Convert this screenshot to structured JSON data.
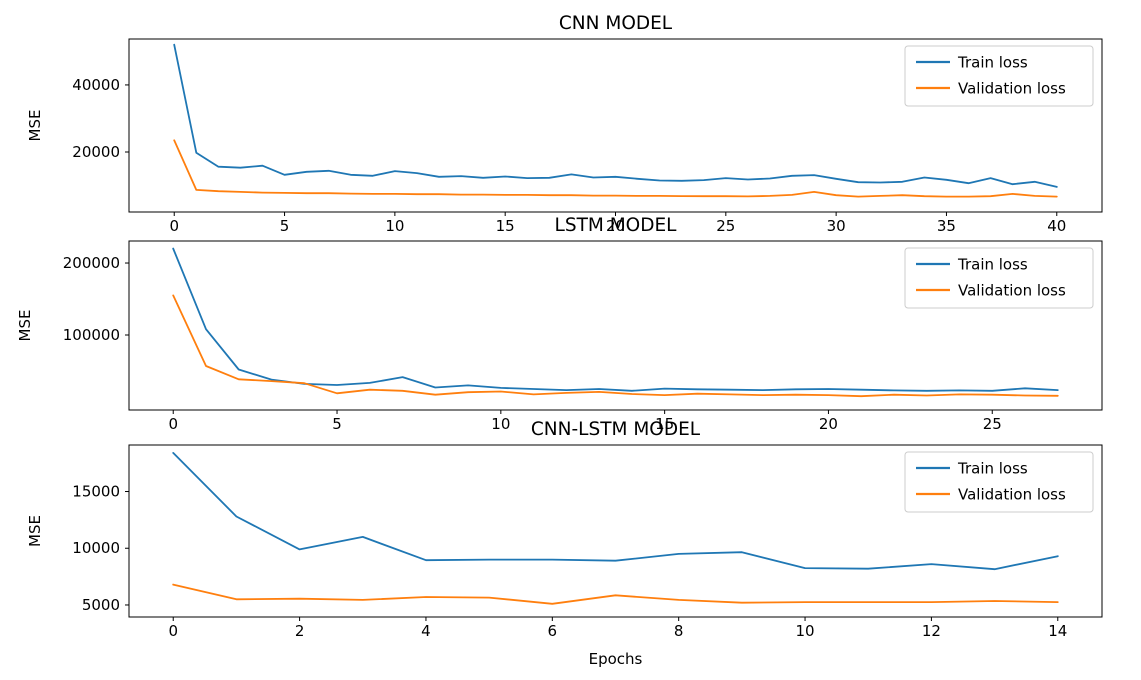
{
  "figure": {
    "background": "#ffffff",
    "train_color": "#1f77b4",
    "validation_color": "#ff7f0e"
  },
  "chart_data": [
    {
      "type": "line",
      "title": "CNN MODEL",
      "ylabel": "MSE",
      "xlabel": "",
      "x_unit": "epoch",
      "xticks": [
        0,
        5,
        10,
        15,
        20,
        25,
        30,
        35,
        40
      ],
      "yticks": [
        20000,
        40000
      ],
      "xlim": [
        -2.05,
        42.05
      ],
      "ylim": [
        2100,
        53700
      ],
      "grid": false,
      "legend_position": "upper right",
      "series": [
        {
          "name": "Train loss",
          "color": "#1f77b4",
          "values": [
            52000,
            19800,
            15600,
            15300,
            15900,
            13200,
            14100,
            14400,
            13200,
            12900,
            14300,
            13700,
            12600,
            12800,
            12300,
            12700,
            12200,
            12300,
            13300,
            12400,
            12600,
            12000,
            11500,
            11400,
            11600,
            12200,
            11800,
            12100,
            12900,
            13100,
            12000,
            11000,
            10900,
            11100,
            12400,
            11700,
            10700,
            12200,
            10400,
            11100,
            9600
          ]
        },
        {
          "name": "Validation loss",
          "color": "#ff7f0e",
          "values": [
            23500,
            8700,
            8300,
            8100,
            7900,
            7800,
            7700,
            7700,
            7600,
            7500,
            7500,
            7400,
            7400,
            7300,
            7300,
            7200,
            7200,
            7100,
            7100,
            7000,
            7000,
            6900,
            6900,
            6850,
            6800,
            6800,
            6750,
            6900,
            7200,
            8100,
            7100,
            6700,
            6900,
            7100,
            6800,
            6700,
            6700,
            6800,
            7500,
            6900,
            6700
          ]
        }
      ]
    },
    {
      "type": "line",
      "title": "LSTM MODEL",
      "ylabel": "MSE",
      "xlabel": "",
      "x_unit": "epoch",
      "xticks": [
        0,
        5,
        10,
        15,
        20,
        25
      ],
      "yticks": [
        100000,
        200000
      ],
      "xlim": [
        -1.35,
        28.35
      ],
      "ylim": [
        -4200,
        230600
      ],
      "grid": false,
      "legend_position": "upper right",
      "series": [
        {
          "name": "Train loss",
          "color": "#1f77b4",
          "values": [
            220000,
            108000,
            52000,
            38000,
            32000,
            30500,
            33500,
            41500,
            27000,
            30000,
            26500,
            25000,
            23500,
            25000,
            22500,
            25500,
            24500,
            24000,
            23500,
            24500,
            25000,
            24000,
            23000,
            22500,
            23000,
            22500,
            26000,
            23500
          ]
        },
        {
          "name": "Validation loss",
          "color": "#ff7f0e",
          "values": [
            155000,
            57000,
            38500,
            36000,
            33000,
            19000,
            24000,
            22500,
            17000,
            20500,
            21500,
            17500,
            19500,
            21000,
            18000,
            16500,
            18500,
            17500,
            16500,
            17000,
            16500,
            15000,
            17000,
            16000,
            17500,
            17000,
            16000,
            15500
          ]
        }
      ]
    },
    {
      "type": "line",
      "title": "CNN-LSTM MODEL",
      "ylabel": "MSE",
      "xlabel": "Epochs",
      "x_unit": "epoch",
      "xticks": [
        0,
        2,
        4,
        6,
        8,
        10,
        12,
        14
      ],
      "yticks": [
        5000,
        10000,
        15000
      ],
      "xlim": [
        -0.7,
        14.7
      ],
      "ylim": [
        3940,
        19100
      ],
      "grid": false,
      "legend_position": "upper right",
      "series": [
        {
          "name": "Train loss",
          "color": "#1f77b4",
          "values": [
            18400,
            12800,
            9900,
            11000,
            8950,
            9000,
            9000,
            8900,
            9500,
            9650,
            8250,
            8200,
            8600,
            8150,
            9300
          ]
        },
        {
          "name": "Validation loss",
          "color": "#ff7f0e",
          "values": [
            6800,
            5500,
            5550,
            5450,
            5700,
            5650,
            5100,
            5850,
            5450,
            5200,
            5250,
            5250,
            5250,
            5350,
            5250
          ]
        }
      ]
    }
  ]
}
